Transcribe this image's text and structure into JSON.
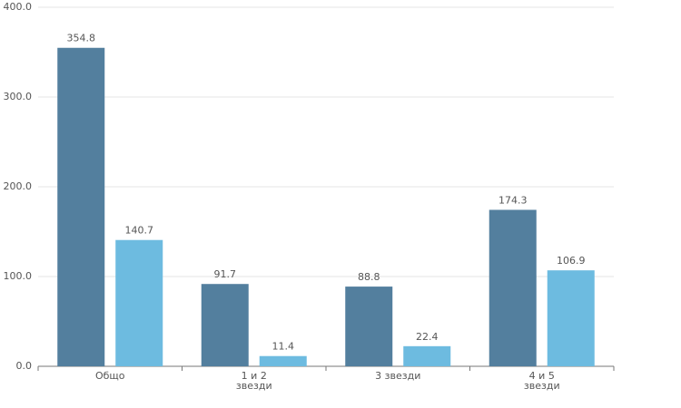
{
  "chart_data": {
    "type": "bar",
    "categories": [
      "Общо",
      "1 и 2 звезди",
      "3 звезди",
      "4 и 5 звезди"
    ],
    "series": [
      {
        "color": "#537f9e",
        "values": [
          354.8,
          91.7,
          88.8,
          174.3
        ]
      },
      {
        "color": "#6dbbe0",
        "values": [
          140.7,
          11.4,
          22.4,
          106.9
        ]
      }
    ],
    "ylim": [
      0,
      400
    ],
    "yticks": [
      {
        "value": 0,
        "label": "0.0"
      },
      {
        "value": 100,
        "label": "100.0"
      },
      {
        "value": 200,
        "label": "200.0"
      },
      {
        "value": 300,
        "label": "300.0"
      },
      {
        "value": 400,
        "label": "400.0"
      }
    ],
    "grid": true
  }
}
